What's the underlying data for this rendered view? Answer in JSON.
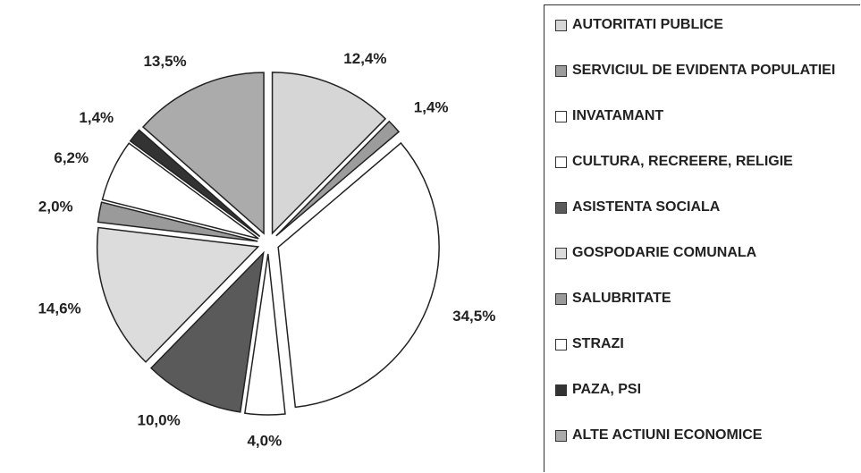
{
  "chart_data": {
    "type": "pie",
    "categories": [
      "AUTORITATI PUBLICE",
      "SERVICIUL DE EVIDENTA POPULATIEI",
      "INVATAMANT",
      "CULTURA, RECREERE, RELIGIE",
      "ASISTENTA SOCIALA",
      "GOSPODARIE COMUNALA",
      "SALUBRITATE",
      "STRAZI",
      "PAZA, PSI",
      "ALTE ACTIUNI ECONOMICE"
    ],
    "values": [
      12.4,
      1.4,
      34.5,
      4.0,
      10.0,
      14.6,
      2.0,
      6.2,
      1.4,
      13.5
    ],
    "value_labels": [
      "12,4%",
      "1,4%",
      "34,5%",
      "4,0%",
      "10,0%",
      "14,6%",
      "2,0%",
      "6,2%",
      "1,4%",
      "13,5%"
    ],
    "colors": [
      "#d6d6d6",
      "#9c9c9c",
      "#ffffff",
      "#ffffff",
      "#5a5a5a",
      "#dcdcdc",
      "#9a9a9a",
      "#ffffff",
      "#333333",
      "#ababab"
    ],
    "legend": "right"
  }
}
